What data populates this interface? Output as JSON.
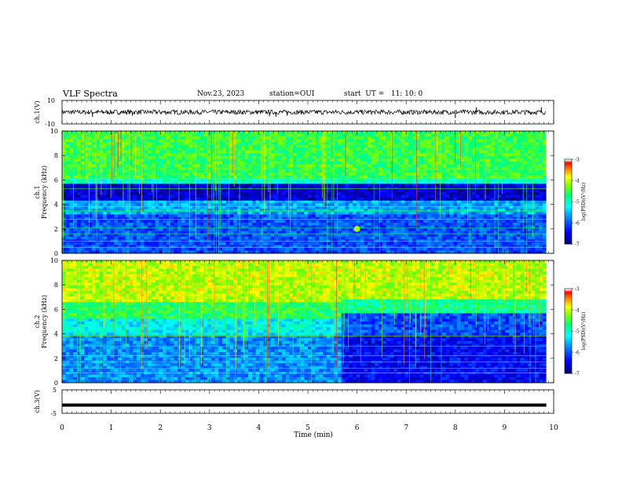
{
  "header": {
    "title": "VLF Spectra",
    "date": "Nov.23, 2023",
    "station": "station=OUI",
    "start": "start  UT =   11: 10: 0"
  },
  "colors": {
    "waveform": "#000000",
    "spectrogram_scale": [
      "#00007f",
      "#0000ff",
      "#00a0ff",
      "#00ffff",
      "#00ff7f",
      "#7fff00",
      "#ffff00",
      "#ff7f00",
      "#ff0000",
      "#ffffff"
    ]
  },
  "chart_data": [
    {
      "type": "line",
      "panel": "ch1-waveform",
      "ylabel": "ch.1(V)",
      "ylim": [
        -10,
        10
      ],
      "yticks": [
        "10",
        "-10"
      ],
      "xlim": [
        0,
        10
      ],
      "baseline": 0,
      "noise_amplitude": 2,
      "spikes": [
        {
          "t": 0.62,
          "v": -4
        },
        {
          "t": 1.43,
          "v": -3
        },
        {
          "t": 4.22,
          "v": -3.5
        },
        {
          "t": 4.35,
          "v": -4
        },
        {
          "t": 4.58,
          "v": -3
        },
        {
          "t": 8.0,
          "v": -5
        },
        {
          "t": 8.43,
          "v": 4
        },
        {
          "t": 9.75,
          "v": 4
        }
      ]
    },
    {
      "type": "heatmap",
      "panel": "ch1-spectrogram",
      "ylabel": "ch.1\nFrequency (kHz)",
      "xlim": [
        0,
        9.85
      ],
      "ylim": [
        0,
        10
      ],
      "yticks": [
        "0",
        "2",
        "4",
        "6",
        "8",
        "10"
      ],
      "colorbar": {
        "label": "log(PSD)(V²/Hz)",
        "range": [
          -7,
          -3
        ],
        "ticks": [
          "-3",
          "-4",
          "-5",
          "-6",
          "-7"
        ]
      },
      "bands": [
        {
          "f": [
            6.1,
            10
          ],
          "level": -4.5
        },
        {
          "f": [
            5.6,
            6.1
          ],
          "level": -5.0
        },
        {
          "f": [
            4.4,
            5.6
          ],
          "level": -6.6
        },
        {
          "f": [
            3.2,
            4.4
          ],
          "level": -5.6
        },
        {
          "f": [
            0,
            3.2
          ],
          "level": -6.0
        }
      ],
      "lines_khz": [
        0.5,
        1.0,
        1.6,
        2.1,
        2.8,
        3.4,
        3.5,
        3.8,
        4.2,
        5.3,
        6.1,
        6.7,
        7.0
      ],
      "burst": {
        "t": 6.0,
        "f": 2.0,
        "level": -4.0
      }
    },
    {
      "type": "heatmap",
      "panel": "ch2-spectrogram",
      "ylabel": "ch.2\nFrequency (kHz)",
      "xlim": [
        0,
        9.85
      ],
      "ylim": [
        0,
        10
      ],
      "yticks": [
        "0",
        "2",
        "4",
        "6",
        "8",
        "10"
      ],
      "colorbar": {
        "label": "log(PSD)(V²/Hz)",
        "range": [
          -7,
          -3
        ],
        "ticks": [
          "-3",
          "-4",
          "-5",
          "-6",
          "-7"
        ]
      },
      "early": {
        "t": [
          0,
          5.65
        ],
        "bands": [
          {
            "f": [
              6.5,
              10
            ],
            "level": -4.0
          },
          {
            "f": [
              5.2,
              6.5
            ],
            "level": -4.6
          },
          {
            "f": [
              3.9,
              5.2
            ],
            "level": -5.2
          },
          {
            "f": [
              0,
              3.9
            ],
            "level": -5.7
          }
        ]
      },
      "late": {
        "t": [
          5.65,
          9.85
        ],
        "bands": [
          {
            "f": [
              6.8,
              10
            ],
            "level": -4.0
          },
          {
            "f": [
              5.6,
              6.8
            ],
            "level": -4.8
          },
          {
            "f": [
              3.8,
              5.6
            ],
            "level": -6.0
          },
          {
            "f": [
              0,
              3.8
            ],
            "level": -6.4
          }
        ]
      },
      "lines_khz": [
        0.8,
        1.2,
        1.7,
        2.2,
        3.0,
        3.8,
        6.1
      ]
    },
    {
      "type": "line",
      "panel": "ch3-waveform",
      "ylabel": "ch.3(V)",
      "ylim": [
        -5,
        5
      ],
      "yticks": [
        "5",
        "-5"
      ],
      "xlim": [
        0,
        10
      ],
      "values": [
        {
          "t": 0,
          "v": -1.5
        },
        {
          "t": 9.85,
          "v": -1.5
        }
      ],
      "xlabel": "Time  (min)",
      "xticks": [
        "0",
        "1",
        "2",
        "3",
        "4",
        "5",
        "6",
        "7",
        "8",
        "9",
        "10"
      ]
    }
  ]
}
